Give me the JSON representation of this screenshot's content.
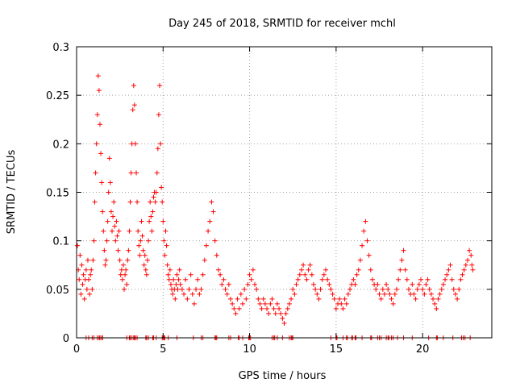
{
  "chart_data": {
    "type": "scatter",
    "title": "Day 245 of 2018, SRMTID for receiver mchl",
    "xlabel": "GPS time / hours",
    "ylabel": "SRMTID / TECUs",
    "xlim": [
      0,
      24
    ],
    "ylim": [
      0,
      0.3
    ],
    "xticks": [
      0,
      5,
      10,
      15,
      20
    ],
    "yticks": [
      0,
      0.05,
      0.1,
      0.15,
      0.2,
      0.25,
      0.3
    ],
    "xtick_labels": [
      "0",
      "5",
      "10",
      "15",
      "20"
    ],
    "ytick_labels": [
      "0",
      "0.05",
      "0.1",
      "0.15",
      "0.2",
      "0.25",
      "0.3"
    ],
    "grid": true,
    "marker": "+",
    "color": "#ff0000",
    "series": [
      {
        "name": "SRMTID",
        "points": [
          [
            0.05,
            0.095
          ],
          [
            0.1,
            0.07
          ],
          [
            0.15,
            0.06
          ],
          [
            0.2,
            0.085
          ],
          [
            0.25,
            0.045
          ],
          [
            0.3,
            0.075
          ],
          [
            0.35,
            0.055
          ],
          [
            0.4,
            0.065
          ],
          [
            0.45,
            0.04
          ],
          [
            0.5,
            0.06
          ],
          [
            0.55,
            0.07
          ],
          [
            0.6,
            0.05
          ],
          [
            0.65,
            0.08
          ],
          [
            0.7,
            0.06
          ],
          [
            0.75,
            0.045
          ],
          [
            0.8,
            0.065
          ],
          [
            0.85,
            0.07
          ],
          [
            0.9,
            0.05
          ],
          [
            0.95,
            0.08
          ],
          [
            1.0,
            0.1
          ],
          [
            1.05,
            0.14
          ],
          [
            1.1,
            0.17
          ],
          [
            1.15,
            0.2
          ],
          [
            1.2,
            0.23
          ],
          [
            1.25,
            0.27
          ],
          [
            1.3,
            0.255
          ],
          [
            1.35,
            0.22
          ],
          [
            1.4,
            0.19
          ],
          [
            1.45,
            0.16
          ],
          [
            1.5,
            0.13
          ],
          [
            1.55,
            0.11
          ],
          [
            1.6,
            0.09
          ],
          [
            1.65,
            0.075
          ],
          [
            1.7,
            0.08
          ],
          [
            1.75,
            0.1
          ],
          [
            1.8,
            0.12
          ],
          [
            1.85,
            0.15
          ],
          [
            1.9,
            0.185
          ],
          [
            1.95,
            0.16
          ],
          [
            2.0,
            0.13
          ],
          [
            2.05,
            0.11
          ],
          [
            2.1,
            0.125
          ],
          [
            2.15,
            0.14
          ],
          [
            2.2,
            0.115
          ],
          [
            2.25,
            0.1
          ],
          [
            2.3,
            0.12
          ],
          [
            2.35,
            0.105
          ],
          [
            2.4,
            0.09
          ],
          [
            2.45,
            0.11
          ],
          [
            2.5,
            0.08
          ],
          [
            2.55,
            0.065
          ],
          [
            2.6,
            0.07
          ],
          [
            2.65,
            0.06
          ],
          [
            2.7,
            0.075
          ],
          [
            2.75,
            0.05
          ],
          [
            2.8,
            0.065
          ],
          [
            2.85,
            0.07
          ],
          [
            2.9,
            0.055
          ],
          [
            2.95,
            0.08
          ],
          [
            3.0,
            0.09
          ],
          [
            3.05,
            0.11
          ],
          [
            3.1,
            0.14
          ],
          [
            3.15,
            0.17
          ],
          [
            3.2,
            0.2
          ],
          [
            3.25,
            0.235
          ],
          [
            3.3,
            0.26
          ],
          [
            3.35,
            0.24
          ],
          [
            3.4,
            0.2
          ],
          [
            3.45,
            0.17
          ],
          [
            3.5,
            0.14
          ],
          [
            3.55,
            0.11
          ],
          [
            3.6,
            0.095
          ],
          [
            3.65,
            0.085
          ],
          [
            3.7,
            0.1
          ],
          [
            3.75,
            0.12
          ],
          [
            3.8,
            0.105
          ],
          [
            3.85,
            0.09
          ],
          [
            3.9,
            0.075
          ],
          [
            3.95,
            0.085
          ],
          [
            4.0,
            0.07
          ],
          [
            4.05,
            0.065
          ],
          [
            4.1,
            0.08
          ],
          [
            4.15,
            0.1
          ],
          [
            4.2,
            0.12
          ],
          [
            4.25,
            0.14
          ],
          [
            4.3,
            0.125
          ],
          [
            4.35,
            0.11
          ],
          [
            4.4,
            0.13
          ],
          [
            4.45,
            0.145
          ],
          [
            4.5,
            0.15
          ],
          [
            4.55,
            0.14
          ],
          [
            4.6,
            0.15
          ],
          [
            4.65,
            0.17
          ],
          [
            4.7,
            0.195
          ],
          [
            4.75,
            0.23
          ],
          [
            4.8,
            0.26
          ],
          [
            4.85,
            0.2
          ],
          [
            4.9,
            0.155
          ],
          [
            4.95,
            0.14
          ],
          [
            5.0,
            0.12
          ],
          [
            5.05,
            0.1
          ],
          [
            5.1,
            0.085
          ],
          [
            5.15,
            0.11
          ],
          [
            5.2,
            0.095
          ],
          [
            5.25,
            0.075
          ],
          [
            5.3,
            0.065
          ],
          [
            5.35,
            0.06
          ],
          [
            5.4,
            0.07
          ],
          [
            5.45,
            0.055
          ],
          [
            5.5,
            0.05
          ],
          [
            5.55,
            0.045
          ],
          [
            5.6,
            0.06
          ],
          [
            5.65,
            0.05
          ],
          [
            5.7,
            0.04
          ],
          [
            5.75,
            0.055
          ],
          [
            5.8,
            0.065
          ],
          [
            5.85,
            0.05
          ],
          [
            5.9,
            0.06
          ],
          [
            5.95,
            0.07
          ],
          [
            6.0,
            0.055
          ],
          [
            6.1,
            0.05
          ],
          [
            6.2,
            0.045
          ],
          [
            6.3,
            0.06
          ],
          [
            6.4,
            0.04
          ],
          [
            6.5,
            0.05
          ],
          [
            6.6,
            0.065
          ],
          [
            6.7,
            0.045
          ],
          [
            6.8,
            0.035
          ],
          [
            6.9,
            0.05
          ],
          [
            7.0,
            0.06
          ],
          [
            7.1,
            0.045
          ],
          [
            7.2,
            0.05
          ],
          [
            7.3,
            0.065
          ],
          [
            7.4,
            0.08
          ],
          [
            7.5,
            0.095
          ],
          [
            7.6,
            0.11
          ],
          [
            7.7,
            0.12
          ],
          [
            7.8,
            0.14
          ],
          [
            7.9,
            0.13
          ],
          [
            8.0,
            0.1
          ],
          [
            8.1,
            0.085
          ],
          [
            8.2,
            0.07
          ],
          [
            8.3,
            0.065
          ],
          [
            8.4,
            0.055
          ],
          [
            8.5,
            0.06
          ],
          [
            8.6,
            0.05
          ],
          [
            8.7,
            0.045
          ],
          [
            8.8,
            0.055
          ],
          [
            8.9,
            0.04
          ],
          [
            9.0,
            0.035
          ],
          [
            9.1,
            0.03
          ],
          [
            9.2,
            0.025
          ],
          [
            9.3,
            0.04
          ],
          [
            9.4,
            0.03
          ],
          [
            9.5,
            0.045
          ],
          [
            9.6,
            0.035
          ],
          [
            9.7,
            0.05
          ],
          [
            9.8,
            0.04
          ],
          [
            9.9,
            0.055
          ],
          [
            10.0,
            0.065
          ],
          [
            10.1,
            0.06
          ],
          [
            10.2,
            0.07
          ],
          [
            10.3,
            0.055
          ],
          [
            10.4,
            0.05
          ],
          [
            10.5,
            0.04
          ],
          [
            10.6,
            0.035
          ],
          [
            10.7,
            0.03
          ],
          [
            10.8,
            0.04
          ],
          [
            10.9,
            0.035
          ],
          [
            11.0,
            0.03
          ],
          [
            11.1,
            0.025
          ],
          [
            11.2,
            0.035
          ],
          [
            11.3,
            0.04
          ],
          [
            11.4,
            0.03
          ],
          [
            11.5,
            0.025
          ],
          [
            11.6,
            0.035
          ],
          [
            11.7,
            0.03
          ],
          [
            11.8,
            0.025
          ],
          [
            11.9,
            0.02
          ],
          [
            12.0,
            0.015
          ],
          [
            12.1,
            0.025
          ],
          [
            12.2,
            0.03
          ],
          [
            12.3,
            0.035
          ],
          [
            12.4,
            0.04
          ],
          [
            12.5,
            0.05
          ],
          [
            12.6,
            0.045
          ],
          [
            12.7,
            0.055
          ],
          [
            12.8,
            0.06
          ],
          [
            12.9,
            0.065
          ],
          [
            13.0,
            0.07
          ],
          [
            13.1,
            0.075
          ],
          [
            13.2,
            0.065
          ],
          [
            13.3,
            0.06
          ],
          [
            13.4,
            0.07
          ],
          [
            13.5,
            0.075
          ],
          [
            13.6,
            0.065
          ],
          [
            13.7,
            0.055
          ],
          [
            13.8,
            0.05
          ],
          [
            13.9,
            0.045
          ],
          [
            14.0,
            0.04
          ],
          [
            14.1,
            0.05
          ],
          [
            14.2,
            0.06
          ],
          [
            14.3,
            0.065
          ],
          [
            14.4,
            0.07
          ],
          [
            14.5,
            0.06
          ],
          [
            14.6,
            0.055
          ],
          [
            14.7,
            0.05
          ],
          [
            14.8,
            0.045
          ],
          [
            14.9,
            0.04
          ],
          [
            15.0,
            0.03
          ],
          [
            15.1,
            0.035
          ],
          [
            15.2,
            0.04
          ],
          [
            15.3,
            0.035
          ],
          [
            15.4,
            0.03
          ],
          [
            15.5,
            0.04
          ],
          [
            15.6,
            0.035
          ],
          [
            15.7,
            0.045
          ],
          [
            15.8,
            0.05
          ],
          [
            15.9,
            0.055
          ],
          [
            16.0,
            0.06
          ],
          [
            16.1,
            0.055
          ],
          [
            16.2,
            0.065
          ],
          [
            16.3,
            0.07
          ],
          [
            16.4,
            0.08
          ],
          [
            16.5,
            0.095
          ],
          [
            16.6,
            0.11
          ],
          [
            16.7,
            0.12
          ],
          [
            16.8,
            0.1
          ],
          [
            16.9,
            0.085
          ],
          [
            17.0,
            0.07
          ],
          [
            17.1,
            0.06
          ],
          [
            17.2,
            0.055
          ],
          [
            17.3,
            0.05
          ],
          [
            17.4,
            0.055
          ],
          [
            17.5,
            0.045
          ],
          [
            17.6,
            0.04
          ],
          [
            17.7,
            0.05
          ],
          [
            17.8,
            0.045
          ],
          [
            17.9,
            0.055
          ],
          [
            18.0,
            0.05
          ],
          [
            18.1,
            0.045
          ],
          [
            18.2,
            0.04
          ],
          [
            18.3,
            0.035
          ],
          [
            18.4,
            0.045
          ],
          [
            18.5,
            0.05
          ],
          [
            18.6,
            0.06
          ],
          [
            18.7,
            0.07
          ],
          [
            18.8,
            0.08
          ],
          [
            18.9,
            0.09
          ],
          [
            19.0,
            0.07
          ],
          [
            19.1,
            0.06
          ],
          [
            19.2,
            0.05
          ],
          [
            19.3,
            0.045
          ],
          [
            19.4,
            0.055
          ],
          [
            19.5,
            0.045
          ],
          [
            19.6,
            0.04
          ],
          [
            19.7,
            0.05
          ],
          [
            19.8,
            0.055
          ],
          [
            19.9,
            0.06
          ],
          [
            20.0,
            0.05
          ],
          [
            20.1,
            0.045
          ],
          [
            20.2,
            0.055
          ],
          [
            20.3,
            0.06
          ],
          [
            20.4,
            0.05
          ],
          [
            20.5,
            0.045
          ],
          [
            20.6,
            0.04
          ],
          [
            20.7,
            0.035
          ],
          [
            20.8,
            0.03
          ],
          [
            20.9,
            0.04
          ],
          [
            21.0,
            0.045
          ],
          [
            21.1,
            0.05
          ],
          [
            21.2,
            0.055
          ],
          [
            21.3,
            0.06
          ],
          [
            21.4,
            0.065
          ],
          [
            21.5,
            0.07
          ],
          [
            21.6,
            0.075
          ],
          [
            21.7,
            0.06
          ],
          [
            21.8,
            0.05
          ],
          [
            21.9,
            0.045
          ],
          [
            22.0,
            0.04
          ],
          [
            22.1,
            0.05
          ],
          [
            22.2,
            0.06
          ],
          [
            22.3,
            0.065
          ],
          [
            22.4,
            0.07
          ],
          [
            22.5,
            0.075
          ],
          [
            22.6,
            0.08
          ],
          [
            22.7,
            0.09
          ],
          [
            22.8,
            0.085
          ],
          [
            22.85,
            0.075
          ],
          [
            22.9,
            0.07
          ]
        ]
      }
    ],
    "zero_value_times": [
      0.55,
      0.7,
      0.9,
      1.0,
      1.2,
      1.3,
      1.35,
      1.45,
      1.5,
      2.9,
      3.05,
      3.1,
      3.2,
      3.3,
      3.35,
      3.4,
      3.5,
      4.0,
      4.05,
      4.15,
      4.4,
      4.45,
      4.6,
      4.95,
      5.0,
      5.05,
      5.1,
      5.3,
      5.8,
      6.75,
      7.2,
      7.3,
      8.0,
      8.05,
      8.1,
      8.8,
      8.9,
      9.35,
      9.4,
      9.6,
      9.95,
      10.0,
      10.05,
      11.3,
      11.4,
      11.45,
      11.6,
      11.9,
      12.3,
      12.4,
      12.45,
      12.5,
      14.7,
      15.0,
      15.05,
      15.4,
      15.6,
      15.65,
      15.9,
      15.95,
      16.1,
      16.15,
      16.5,
      17.0,
      17.05,
      17.4,
      17.5,
      17.6,
      17.9,
      18.0,
      18.05,
      18.2,
      18.3,
      18.55,
      18.9,
      19.4,
      20.35,
      20.8,
      20.85,
      21.2,
      21.75,
      22.25,
      22.35,
      22.45,
      22.75
    ]
  }
}
